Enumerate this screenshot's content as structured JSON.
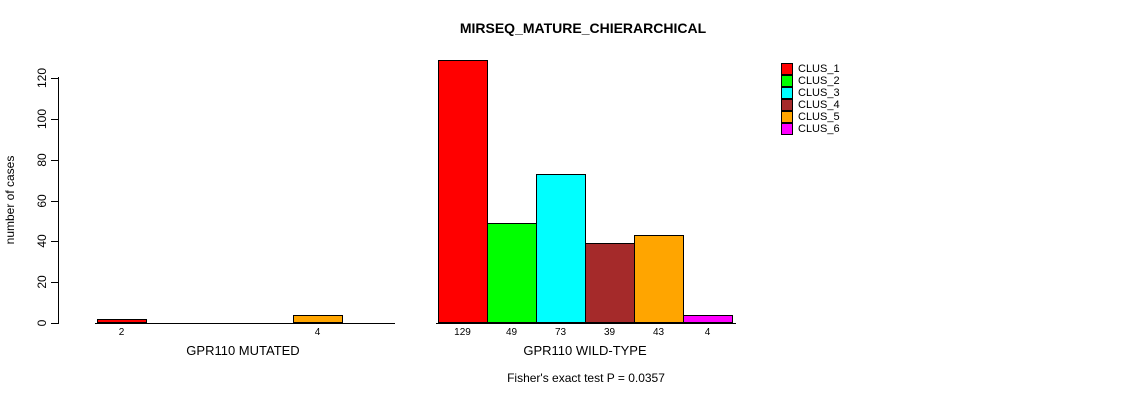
{
  "title": "MIRSEQ_MATURE_CHIERARCHICAL",
  "footer_note": "Fisher's exact test P = 0.0357",
  "y_axis": {
    "label": "number of cases",
    "ticks": [
      0,
      20,
      40,
      60,
      80,
      100,
      120
    ]
  },
  "legend": {
    "position": "top-right",
    "entries": [
      {
        "label": "CLUS_1",
        "color": "#FF0000"
      },
      {
        "label": "CLUS_2",
        "color": "#00FF00"
      },
      {
        "label": "CLUS_3",
        "color": "#00FFFF"
      },
      {
        "label": "CLUS_4",
        "color": "#A52A2A"
      },
      {
        "label": "CLUS_5",
        "color": "#FFA500"
      },
      {
        "label": "CLUS_6",
        "color": "#FF00FF"
      }
    ]
  },
  "chart_data": {
    "type": "bar",
    "title": "MIRSEQ_MATURE_CHIERARCHICAL",
    "xlabel": "",
    "ylabel": "number of cases",
    "ylim": [
      0,
      130
    ],
    "yticks": [
      0,
      20,
      40,
      60,
      80,
      100,
      120
    ],
    "grid": false,
    "legend_position": "top-right",
    "categories": [
      "GPR110 MUTATED",
      "GPR110 WILD-TYPE"
    ],
    "series": [
      {
        "name": "CLUS_1",
        "color": "#FF0000",
        "values": [
          2,
          129
        ]
      },
      {
        "name": "CLUS_2",
        "color": "#00FF00",
        "values": [
          0,
          49
        ]
      },
      {
        "name": "CLUS_3",
        "color": "#00FFFF",
        "values": [
          0,
          73
        ]
      },
      {
        "name": "CLUS_4",
        "color": "#A52A2A",
        "values": [
          0,
          39
        ]
      },
      {
        "name": "CLUS_5",
        "color": "#FFA500",
        "values": [
          4,
          43
        ]
      },
      {
        "name": "CLUS_6",
        "color": "#FF00FF",
        "values": [
          0,
          4
        ]
      }
    ],
    "bar_value_labels": "nonzero values printed below each bar",
    "annotation": "Fisher's exact test P = 0.0357"
  }
}
